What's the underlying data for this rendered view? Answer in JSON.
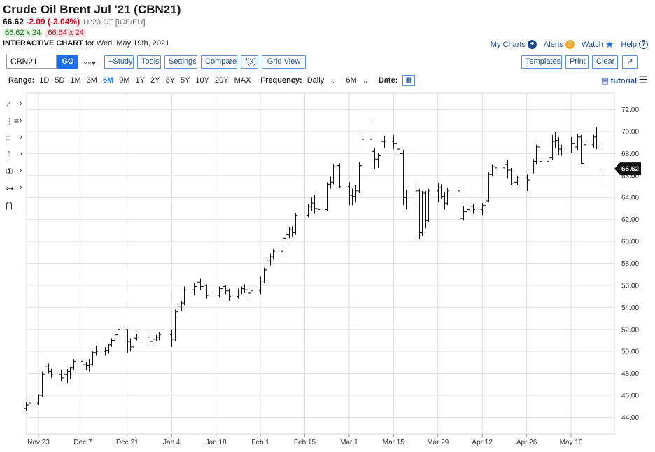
{
  "header": {
    "title": "Crude Oil Brent Jul '21 (CBN21)",
    "last": "66.62",
    "change": "-2.09 (-3.04%)",
    "time": "11:23 CT [ICE/EU]",
    "bid": "66.62 x 24",
    "ask": "66.64 x 24",
    "chart_label": "INTERACTIVE CHART",
    "chart_for": "for Wed, May 19th, 2021"
  },
  "links": {
    "my_charts": "My Charts",
    "alerts": "Alerts",
    "watch": "Watch",
    "help": "Help",
    "alerts_glyph": "!",
    "help_glyph": "?"
  },
  "toolbar": {
    "symbol_value": "CBN21",
    "go": "GO",
    "study": "+Study",
    "tools": "Tools",
    "settings": "Settings",
    "compare": "Compare",
    "fx": "f(x)",
    "grid_view": "Grid View",
    "templates": "Templates",
    "print": "Print",
    "clear": "Clear"
  },
  "rangebar": {
    "range_label": "Range:",
    "ranges": [
      "1D",
      "5D",
      "1M",
      "3M",
      "6M",
      "9M",
      "1Y",
      "2Y",
      "3Y",
      "5Y",
      "10Y",
      "20Y",
      "MAX"
    ],
    "active": "6M",
    "frequency_label": "Frequency:",
    "frequency_value": "Daily",
    "period_value": "6M",
    "date_label": "Date:",
    "tutorial": "tutorial"
  },
  "side_tools": [
    "line-tool-icon",
    "fibonacci-tool-icon",
    "shape-tool-icon",
    "arrow-tool-icon",
    "marker-tool-icon",
    "annotation-tool-icon",
    "magnet-icon"
  ],
  "colors": {
    "accent": "#1d6ee8",
    "negative": "#d0021b",
    "positive": "#1d7a1d",
    "bar": "#111111",
    "grid": "#e0e0e0"
  },
  "chart_data": {
    "type": "ohlc",
    "ylim": [
      42.5,
      73.5
    ],
    "yticks": [
      44,
      46,
      48,
      50,
      52,
      54,
      56,
      58,
      60,
      62,
      64,
      66,
      68,
      70,
      72
    ],
    "ytick_labels": [
      "44.00",
      "46.00",
      "48.00",
      "50.00",
      "52.00",
      "54.00",
      "56.00",
      "58.00",
      "60.00",
      "62.00",
      "64.00",
      "66.00",
      "68.00",
      "70.00",
      "72.00"
    ],
    "xtick_labels": [
      "Nov 23",
      "Dec 7",
      "Dec 21",
      "Jan 4",
      "Jan 18",
      "Feb 1",
      "Feb 15",
      "Mar 1",
      "Mar 15",
      "Mar 29",
      "Apr 12",
      "Apr 26",
      "May 10"
    ],
    "xtick_dates": [
      "2020-11-23",
      "2020-12-07",
      "2020-12-21",
      "2021-01-04",
      "2021-01-18",
      "2021-02-01",
      "2021-02-15",
      "2021-03-01",
      "2021-03-15",
      "2021-03-29",
      "2021-04-12",
      "2021-04-26",
      "2021-05-10"
    ],
    "last_value_label": "66.62",
    "bars": [
      {
        "d": "2020-11-19",
        "o": 44.8,
        "h": 45.4,
        "l": 44.6,
        "c": 45.1
      },
      {
        "d": "2020-11-20",
        "o": 45.1,
        "h": 45.6,
        "l": 44.9,
        "c": 45.3
      },
      {
        "d": "2020-11-23",
        "o": 45.3,
        "h": 46.1,
        "l": 45.1,
        "c": 46.0
      },
      {
        "d": "2020-11-24",
        "o": 46.0,
        "h": 48.2,
        "l": 45.8,
        "c": 47.9
      },
      {
        "d": "2020-11-25",
        "o": 47.9,
        "h": 48.8,
        "l": 47.6,
        "c": 48.6
      },
      {
        "d": "2020-11-26",
        "o": 48.6,
        "h": 48.9,
        "l": 48.0,
        "c": 48.2
      },
      {
        "d": "2020-11-27",
        "o": 48.2,
        "h": 48.4,
        "l": 47.6,
        "c": 47.9
      },
      {
        "d": "2020-11-30",
        "o": 47.9,
        "h": 48.3,
        "l": 47.3,
        "c": 47.6
      },
      {
        "d": "2020-12-01",
        "o": 47.6,
        "h": 48.2,
        "l": 47.2,
        "c": 47.9
      },
      {
        "d": "2020-12-02",
        "o": 47.9,
        "h": 48.4,
        "l": 47.1,
        "c": 48.2
      },
      {
        "d": "2020-12-03",
        "o": 48.2,
        "h": 48.6,
        "l": 47.5,
        "c": 48.5
      },
      {
        "d": "2020-12-04",
        "o": 48.5,
        "h": 49.3,
        "l": 48.3,
        "c": 49.1
      },
      {
        "d": "2020-12-07",
        "o": 49.1,
        "h": 49.3,
        "l": 48.3,
        "c": 48.8
      },
      {
        "d": "2020-12-08",
        "o": 48.8,
        "h": 49.0,
        "l": 48.3,
        "c": 48.7
      },
      {
        "d": "2020-12-09",
        "o": 48.7,
        "h": 49.3,
        "l": 48.2,
        "c": 48.8
      },
      {
        "d": "2020-12-10",
        "o": 48.8,
        "h": 50.0,
        "l": 48.7,
        "c": 49.9
      },
      {
        "d": "2020-12-11",
        "o": 49.9,
        "h": 50.5,
        "l": 49.6,
        "c": 50.0
      },
      {
        "d": "2020-12-14",
        "o": 50.0,
        "h": 50.4,
        "l": 49.6,
        "c": 50.1
      },
      {
        "d": "2020-12-15",
        "o": 50.1,
        "h": 50.7,
        "l": 49.8,
        "c": 50.6
      },
      {
        "d": "2020-12-16",
        "o": 50.6,
        "h": 51.2,
        "l": 50.4,
        "c": 51.0
      },
      {
        "d": "2020-12-17",
        "o": 51.0,
        "h": 51.7,
        "l": 50.9,
        "c": 51.5
      },
      {
        "d": "2020-12-18",
        "o": 51.5,
        "h": 52.2,
        "l": 51.2,
        "c": 52.0
      },
      {
        "d": "2020-12-21",
        "o": 52.0,
        "h": 52.0,
        "l": 49.9,
        "c": 50.9
      },
      {
        "d": "2020-12-22",
        "o": 50.9,
        "h": 51.2,
        "l": 50.0,
        "c": 50.4
      },
      {
        "d": "2020-12-23",
        "o": 50.4,
        "h": 51.3,
        "l": 50.2,
        "c": 51.2
      },
      {
        "d": "2020-12-24",
        "o": 51.2,
        "h": 51.6,
        "l": 51.0,
        "c": 51.3
      },
      {
        "d": "2020-12-28",
        "o": 51.3,
        "h": 51.5,
        "l": 50.6,
        "c": 50.9
      },
      {
        "d": "2020-12-29",
        "o": 50.9,
        "h": 51.3,
        "l": 50.5,
        "c": 51.1
      },
      {
        "d": "2020-12-30",
        "o": 51.1,
        "h": 51.5,
        "l": 50.9,
        "c": 51.3
      },
      {
        "d": "2020-12-31",
        "o": 51.3,
        "h": 51.8,
        "l": 51.0,
        "c": 51.5
      },
      {
        "d": "2021-01-04",
        "o": 51.5,
        "h": 52.0,
        "l": 50.4,
        "c": 51.1
      },
      {
        "d": "2021-01-05",
        "o": 51.1,
        "h": 53.8,
        "l": 50.9,
        "c": 53.6
      },
      {
        "d": "2021-01-06",
        "o": 53.6,
        "h": 54.3,
        "l": 53.3,
        "c": 54.1
      },
      {
        "d": "2021-01-07",
        "o": 54.1,
        "h": 54.6,
        "l": 53.7,
        "c": 54.4
      },
      {
        "d": "2021-01-08",
        "o": 54.4,
        "h": 55.9,
        "l": 54.2,
        "c": 55.6
      },
      {
        "d": "2021-01-11",
        "o": 55.6,
        "h": 56.2,
        "l": 55.1,
        "c": 55.9
      },
      {
        "d": "2021-01-12",
        "o": 55.9,
        "h": 56.6,
        "l": 55.6,
        "c": 56.3
      },
      {
        "d": "2021-01-13",
        "o": 56.3,
        "h": 56.6,
        "l": 55.6,
        "c": 55.9
      },
      {
        "d": "2021-01-14",
        "o": 55.9,
        "h": 56.4,
        "l": 55.4,
        "c": 56.0
      },
      {
        "d": "2021-01-15",
        "o": 56.0,
        "h": 56.1,
        "l": 54.8,
        "c": 55.1
      },
      {
        "d": "2021-01-19",
        "o": 55.1,
        "h": 55.9,
        "l": 54.9,
        "c": 55.7
      },
      {
        "d": "2021-01-20",
        "o": 55.7,
        "h": 56.1,
        "l": 55.4,
        "c": 55.9
      },
      {
        "d": "2021-01-21",
        "o": 55.9,
        "h": 56.0,
        "l": 55.2,
        "c": 55.5
      },
      {
        "d": "2021-01-22",
        "o": 55.5,
        "h": 55.7,
        "l": 54.6,
        "c": 55.0
      },
      {
        "d": "2021-01-25",
        "o": 55.0,
        "h": 55.7,
        "l": 54.8,
        "c": 55.4
      },
      {
        "d": "2021-01-26",
        "o": 55.4,
        "h": 55.9,
        "l": 55.2,
        "c": 55.7
      },
      {
        "d": "2021-01-27",
        "o": 55.7,
        "h": 56.1,
        "l": 55.3,
        "c": 55.6
      },
      {
        "d": "2021-01-28",
        "o": 55.6,
        "h": 55.8,
        "l": 54.8,
        "c": 55.3
      },
      {
        "d": "2021-01-29",
        "o": 55.3,
        "h": 55.9,
        "l": 55.0,
        "c": 55.5
      },
      {
        "d": "2021-02-01",
        "o": 55.5,
        "h": 56.8,
        "l": 55.2,
        "c": 56.4
      },
      {
        "d": "2021-02-02",
        "o": 56.4,
        "h": 57.6,
        "l": 56.2,
        "c": 57.4
      },
      {
        "d": "2021-02-03",
        "o": 57.4,
        "h": 58.5,
        "l": 57.2,
        "c": 58.3
      },
      {
        "d": "2021-02-04",
        "o": 58.3,
        "h": 58.9,
        "l": 57.8,
        "c": 58.6
      },
      {
        "d": "2021-02-05",
        "o": 58.6,
        "h": 59.3,
        "l": 58.4,
        "c": 59.1
      },
      {
        "d": "2021-02-08",
        "o": 59.1,
        "h": 60.5,
        "l": 59.0,
        "c": 60.3
      },
      {
        "d": "2021-02-09",
        "o": 60.3,
        "h": 61.0,
        "l": 60.0,
        "c": 60.6
      },
      {
        "d": "2021-02-10",
        "o": 60.6,
        "h": 61.3,
        "l": 60.3,
        "c": 61.1
      },
      {
        "d": "2021-02-11",
        "o": 61.1,
        "h": 61.4,
        "l": 60.4,
        "c": 60.8
      },
      {
        "d": "2021-02-12",
        "o": 60.8,
        "h": 62.6,
        "l": 60.6,
        "c": 62.4
      },
      {
        "d": "2021-02-16",
        "o": 62.4,
        "h": 63.4,
        "l": 62.2,
        "c": 63.2
      },
      {
        "d": "2021-02-17",
        "o": 63.2,
        "h": 64.0,
        "l": 62.8,
        "c": 63.5
      },
      {
        "d": "2021-02-18",
        "o": 63.5,
        "h": 64.2,
        "l": 62.5,
        "c": 63.0
      },
      {
        "d": "2021-02-19",
        "o": 63.0,
        "h": 63.6,
        "l": 62.2,
        "c": 62.9
      },
      {
        "d": "2021-02-22",
        "o": 62.9,
        "h": 65.4,
        "l": 62.8,
        "c": 65.2
      },
      {
        "d": "2021-02-23",
        "o": 65.2,
        "h": 65.9,
        "l": 64.8,
        "c": 65.4
      },
      {
        "d": "2021-02-24",
        "o": 65.4,
        "h": 67.0,
        "l": 65.2,
        "c": 66.8
      },
      {
        "d": "2021-02-25",
        "o": 66.8,
        "h": 67.6,
        "l": 66.4,
        "c": 66.9
      },
      {
        "d": "2021-02-26",
        "o": 66.9,
        "h": 67.1,
        "l": 64.9,
        "c": 65.0
      },
      {
        "d": "2021-03-01",
        "o": 65.0,
        "h": 65.4,
        "l": 63.3,
        "c": 64.2
      },
      {
        "d": "2021-03-02",
        "o": 64.2,
        "h": 64.8,
        "l": 63.3,
        "c": 64.1
      },
      {
        "d": "2021-03-03",
        "o": 64.1,
        "h": 65.1,
        "l": 63.6,
        "c": 64.6
      },
      {
        "d": "2021-03-04",
        "o": 64.6,
        "h": 67.2,
        "l": 64.4,
        "c": 66.9
      },
      {
        "d": "2021-03-05",
        "o": 66.9,
        "h": 69.9,
        "l": 66.7,
        "c": 69.3
      },
      {
        "d": "2021-03-08",
        "o": 69.3,
        "h": 71.1,
        "l": 67.5,
        "c": 68.2
      },
      {
        "d": "2021-03-09",
        "o": 68.2,
        "h": 68.5,
        "l": 66.6,
        "c": 67.5
      },
      {
        "d": "2021-03-10",
        "o": 67.5,
        "h": 68.1,
        "l": 66.7,
        "c": 67.8
      },
      {
        "d": "2021-03-11",
        "o": 67.8,
        "h": 69.4,
        "l": 67.6,
        "c": 69.1
      },
      {
        "d": "2021-03-12",
        "o": 69.1,
        "h": 69.6,
        "l": 68.5,
        "c": 69.1
      },
      {
        "d": "2021-03-15",
        "o": 69.1,
        "h": 69.7,
        "l": 68.4,
        "c": 68.9
      },
      {
        "d": "2021-03-16",
        "o": 68.9,
        "h": 69.2,
        "l": 67.9,
        "c": 68.4
      },
      {
        "d": "2021-03-17",
        "o": 68.4,
        "h": 68.7,
        "l": 67.6,
        "c": 68.0
      },
      {
        "d": "2021-03-18",
        "o": 68.0,
        "h": 68.3,
        "l": 63.3,
        "c": 64.0
      },
      {
        "d": "2021-03-19",
        "o": 64.0,
        "h": 64.7,
        "l": 62.9,
        "c": 64.5
      },
      {
        "d": "2021-03-22",
        "o": 64.5,
        "h": 65.2,
        "l": 63.6,
        "c": 64.6
      },
      {
        "d": "2021-03-23",
        "o": 64.6,
        "h": 64.8,
        "l": 60.2,
        "c": 60.8
      },
      {
        "d": "2021-03-24",
        "o": 60.8,
        "h": 64.6,
        "l": 60.5,
        "c": 64.4
      },
      {
        "d": "2021-03-25",
        "o": 64.4,
        "h": 64.6,
        "l": 61.2,
        "c": 61.9
      },
      {
        "d": "2021-03-26",
        "o": 61.9,
        "h": 64.8,
        "l": 61.8,
        "c": 64.6
      },
      {
        "d": "2021-03-29",
        "o": 64.6,
        "h": 65.3,
        "l": 63.6,
        "c": 64.9
      },
      {
        "d": "2021-03-30",
        "o": 64.9,
        "h": 65.2,
        "l": 63.9,
        "c": 64.1
      },
      {
        "d": "2021-03-31",
        "o": 64.1,
        "h": 64.5,
        "l": 62.9,
        "c": 63.5
      },
      {
        "d": "2021-04-01",
        "o": 63.5,
        "h": 64.9,
        "l": 63.3,
        "c": 64.6
      },
      {
        "d": "2021-04-05",
        "o": 64.6,
        "h": 64.7,
        "l": 62.0,
        "c": 62.1
      },
      {
        "d": "2021-04-06",
        "o": 62.1,
        "h": 63.2,
        "l": 61.9,
        "c": 62.7
      },
      {
        "d": "2021-04-07",
        "o": 62.7,
        "h": 63.4,
        "l": 62.1,
        "c": 62.9
      },
      {
        "d": "2021-04-08",
        "o": 62.9,
        "h": 63.5,
        "l": 62.6,
        "c": 63.2
      },
      {
        "d": "2021-04-09",
        "o": 63.2,
        "h": 63.4,
        "l": 62.5,
        "c": 62.9
      },
      {
        "d": "2021-04-12",
        "o": 62.9,
        "h": 63.5,
        "l": 62.4,
        "c": 63.3
      },
      {
        "d": "2021-04-13",
        "o": 63.3,
        "h": 63.8,
        "l": 62.9,
        "c": 63.7
      },
      {
        "d": "2021-04-14",
        "o": 63.7,
        "h": 66.3,
        "l": 63.6,
        "c": 66.1
      },
      {
        "d": "2021-04-15",
        "o": 66.1,
        "h": 67.0,
        "l": 65.9,
        "c": 66.8
      },
      {
        "d": "2021-04-16",
        "o": 66.8,
        "h": 67.1,
        "l": 66.5,
        "c": 66.7
      },
      {
        "d": "2021-04-19",
        "o": 66.7,
        "h": 67.5,
        "l": 66.5,
        "c": 67.0
      },
      {
        "d": "2021-04-20",
        "o": 67.0,
        "h": 67.4,
        "l": 65.7,
        "c": 66.5
      },
      {
        "d": "2021-04-21",
        "o": 66.5,
        "h": 66.7,
        "l": 65.1,
        "c": 65.3
      },
      {
        "d": "2021-04-22",
        "o": 65.3,
        "h": 65.6,
        "l": 64.7,
        "c": 65.4
      },
      {
        "d": "2021-04-23",
        "o": 65.4,
        "h": 66.0,
        "l": 65.1,
        "c": 65.8
      },
      {
        "d": "2021-04-26",
        "o": 65.8,
        "h": 66.1,
        "l": 64.6,
        "c": 65.6
      },
      {
        "d": "2021-04-27",
        "o": 65.6,
        "h": 66.6,
        "l": 65.4,
        "c": 66.4
      },
      {
        "d": "2021-04-28",
        "o": 66.4,
        "h": 67.5,
        "l": 66.2,
        "c": 67.3
      },
      {
        "d": "2021-04-29",
        "o": 67.3,
        "h": 68.8,
        "l": 67.0,
        "c": 68.6
      },
      {
        "d": "2021-04-30",
        "o": 68.6,
        "h": 68.9,
        "l": 66.8,
        "c": 67.3
      },
      {
        "d": "2021-05-03",
        "o": 67.3,
        "h": 67.8,
        "l": 66.9,
        "c": 67.6
      },
      {
        "d": "2021-05-04",
        "o": 67.6,
        "h": 69.7,
        "l": 67.4,
        "c": 69.1
      },
      {
        "d": "2021-05-05",
        "o": 69.1,
        "h": 70.0,
        "l": 68.5,
        "c": 69.2
      },
      {
        "d": "2021-05-06",
        "o": 69.2,
        "h": 69.5,
        "l": 67.9,
        "c": 68.4
      },
      {
        "d": "2021-05-07",
        "o": 68.4,
        "h": 68.8,
        "l": 67.8,
        "c": 68.5
      },
      {
        "d": "2021-05-10",
        "o": 68.5,
        "h": 69.5,
        "l": 68.1,
        "c": 68.9
      },
      {
        "d": "2021-05-11",
        "o": 68.9,
        "h": 69.1,
        "l": 67.6,
        "c": 68.6
      },
      {
        "d": "2021-05-12",
        "o": 68.6,
        "h": 69.8,
        "l": 68.3,
        "c": 69.5
      },
      {
        "d": "2021-05-13",
        "o": 69.5,
        "h": 69.7,
        "l": 67.0,
        "c": 67.1
      },
      {
        "d": "2021-05-14",
        "o": 67.1,
        "h": 69.0,
        "l": 66.8,
        "c": 68.8
      },
      {
        "d": "2021-05-17",
        "o": 68.8,
        "h": 69.7,
        "l": 68.5,
        "c": 69.5
      },
      {
        "d": "2021-05-18",
        "o": 69.5,
        "h": 70.4,
        "l": 68.4,
        "c": 68.7
      },
      {
        "d": "2021-05-19",
        "o": 68.7,
        "h": 68.8,
        "l": 65.3,
        "c": 66.6
      }
    ]
  }
}
